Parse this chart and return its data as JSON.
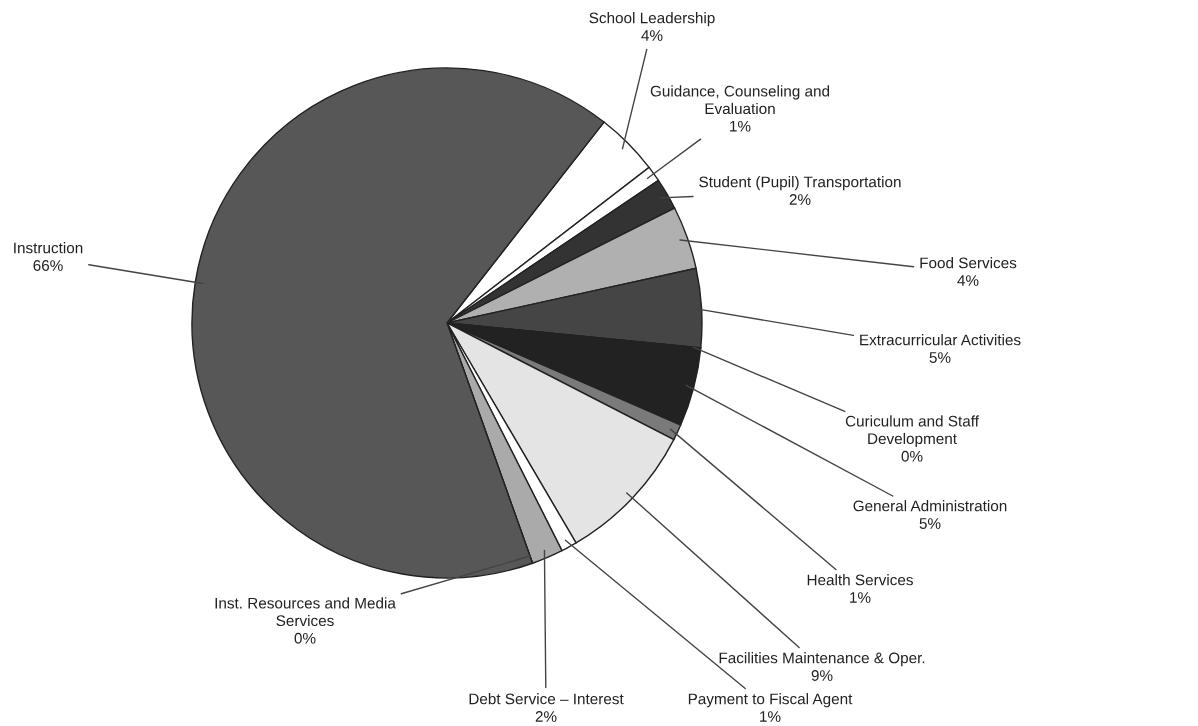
{
  "chart_data": {
    "type": "pie",
    "categories": [
      "School Leadership",
      "Guidance, Counseling and\nEvaluation",
      "Student (Pupil) Transportation",
      "Food Services",
      "Extracurricular Activities",
      "Curiculum and Staff\nDevelopment",
      "General Administration",
      "Health Services",
      "Facilities Maintenance & Oper.",
      "Payment to Fiscal Agent",
      "Debt Service – Interest",
      "Inst. Resources and Media\nServices",
      "Instruction"
    ],
    "values": [
      4,
      1,
      2,
      4,
      5,
      0,
      5,
      1,
      9,
      1,
      2,
      0,
      66
    ],
    "colors": [
      "#ffffff",
      "#ffffff",
      "#333333",
      "#b0b0b0",
      "#454545",
      "#383838",
      "#222222",
      "#7a7a7a",
      "#e4e4e4",
      "#ffffff",
      "#aaaaaa",
      "#222222",
      "#575757"
    ],
    "value_labels": [
      "4%",
      "1%",
      "2%",
      "4%",
      "5%",
      "0%",
      "5%",
      "1%",
      "9%",
      "1%",
      "2%",
      "0%",
      "66%"
    ],
    "legend": false
  }
}
